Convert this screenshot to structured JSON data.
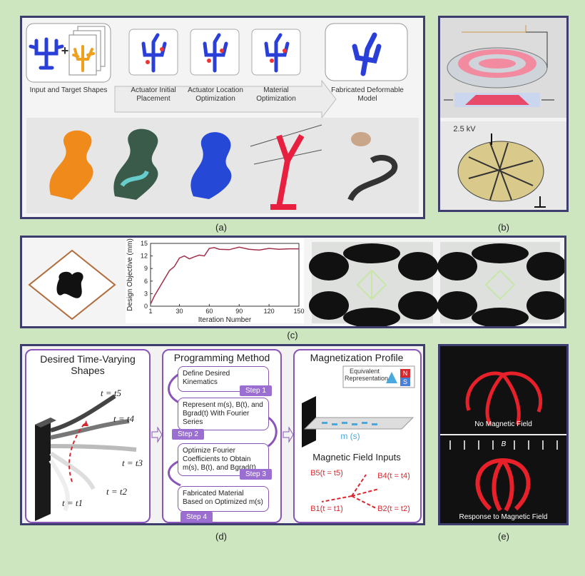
{
  "panel_a": {
    "caption": "(a)",
    "steps": [
      {
        "label": "Input and Target Shapes"
      },
      {
        "label": "Actuator Initial Placement"
      },
      {
        "label": "Actuator Location Optimization"
      },
      {
        "label": "Material Optimization"
      },
      {
        "label": "Fabricated Deformable Model"
      }
    ],
    "plus": "+"
  },
  "panel_b": {
    "caption": "(b)",
    "voltage": "2.5 kV"
  },
  "panel_c": {
    "caption": "(c)",
    "chart_data": {
      "type": "line",
      "xlabel": "Iteration Number",
      "ylabel": "Design Objective (mm)",
      "xlim": [
        1,
        150
      ],
      "ylim": [
        0,
        15
      ],
      "x_ticks": [
        1,
        30,
        60,
        90,
        120,
        150
      ],
      "y_ticks": [
        0,
        3,
        6,
        9,
        12,
        15
      ],
      "x_tick_labels": [
        "1",
        "30",
        "60",
        "90",
        "120",
        "150"
      ],
      "y_tick_labels": [
        "0",
        "3",
        "6",
        "9",
        "12",
        "15"
      ],
      "series": [
        {
          "x": [
            1,
            5,
            10,
            15,
            20,
            25,
            30,
            35,
            40,
            45,
            50,
            55,
            60,
            65,
            70,
            80,
            90,
            100,
            110,
            120,
            130,
            140,
            150
          ],
          "y": [
            0.5,
            2.5,
            4.5,
            6.5,
            8.5,
            9.5,
            11.5,
            12.0,
            11.3,
            11.8,
            12.2,
            12.0,
            13.8,
            14.0,
            13.6,
            13.5,
            14.1,
            13.6,
            13.4,
            13.8,
            13.6,
            13.7,
            13.7
          ],
          "color": "#a0304a"
        }
      ]
    }
  },
  "panel_d": {
    "caption": "(d)",
    "col1_title": "Desired Time-Varying Shapes",
    "col2_title": "Programming Method",
    "col3_title": "Magnetization Profile",
    "steps": [
      {
        "text": "Define Desired Kinematics",
        "tag": "Step 1"
      },
      {
        "text": "Represent m(s), B(t), and Bgrad(t) With Fourier Series",
        "tag": "Step 2"
      },
      {
        "text": "Optimize Fourier Coefficients to Obtain m(s), B(t), and Bgrad(t)",
        "tag": "Step 3"
      },
      {
        "text": "Fabricated Material Based on Optimized m(s)",
        "tag": "Step 4"
      }
    ],
    "times": [
      "t = t5",
      "t = t4",
      "t = t3",
      "t = t2",
      "t = t1"
    ],
    "equivalent": "Equivalent Representation",
    "n": "N",
    "s": "S",
    "ms": "m (s)",
    "field_inputs": "Magnetic Field Inputs",
    "b_labels": [
      "B5(t = t5)",
      "B4(t = t4)",
      "B2(t = t2)",
      "B1(t = t1)"
    ],
    "colors": {
      "red": "#d6282e",
      "purple": "#8a55b8",
      "blue": "#4aa8de"
    }
  },
  "panel_e": {
    "caption": "(e)",
    "top_label": "No Magnetic Field",
    "bottom_label": "Response to Magnetic Field",
    "b": "B"
  }
}
